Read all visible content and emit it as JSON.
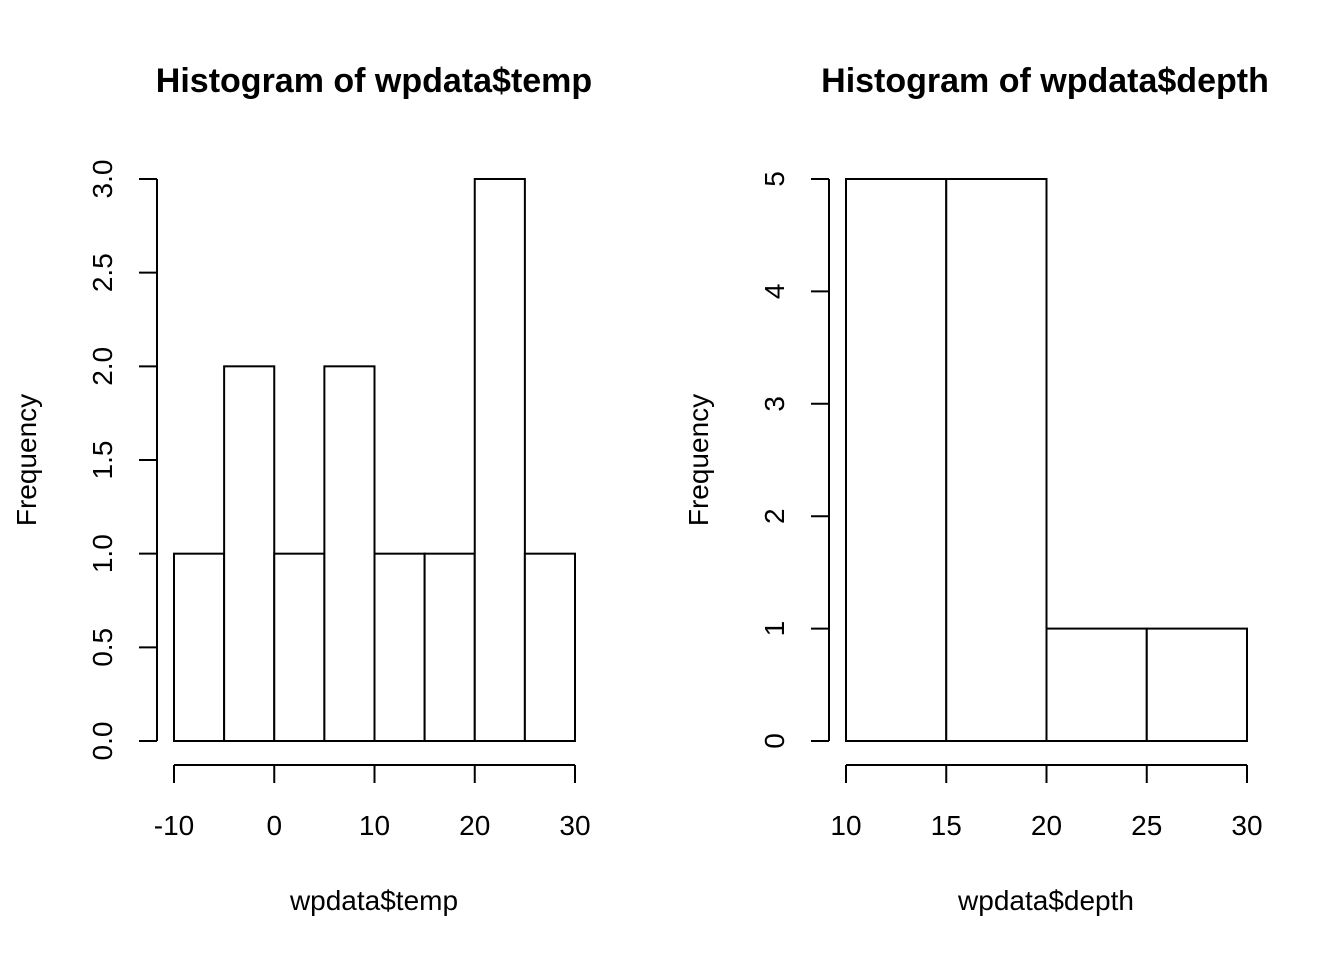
{
  "chart_data": [
    {
      "type": "bar",
      "histogram": true,
      "title": "Histogram of wpdata$temp",
      "xlabel": "wpdata$temp",
      "ylabel": "Frequency",
      "bins": [
        {
          "x0": -10,
          "x1": -5,
          "count": 1
        },
        {
          "x0": -5,
          "x1": 0,
          "count": 2
        },
        {
          "x0": 0,
          "x1": 5,
          "count": 1
        },
        {
          "x0": 5,
          "x1": 10,
          "count": 2
        },
        {
          "x0": 10,
          "x1": 15,
          "count": 1
        },
        {
          "x0": 15,
          "x1": 20,
          "count": 1
        },
        {
          "x0": 20,
          "x1": 25,
          "count": 3
        },
        {
          "x0": 25,
          "x1": 30,
          "count": 1
        }
      ],
      "xlim": [
        -10,
        30
      ],
      "ylim": [
        0,
        3
      ],
      "xticks": [
        -10,
        0,
        10,
        20,
        30
      ],
      "xtick_labels": [
        "-10",
        "0",
        "10",
        "20",
        "30"
      ],
      "yticks": [
        0,
        0.5,
        1,
        1.5,
        2,
        2.5,
        3
      ],
      "ytick_labels": [
        "0.0",
        "0.5",
        "1.0",
        "1.5",
        "2.0",
        "2.5",
        "3.0"
      ],
      "grid": false,
      "bar_fill": "#ffffff",
      "bar_stroke": "#000000"
    },
    {
      "type": "bar",
      "histogram": true,
      "title": "Histogram of wpdata$depth",
      "xlabel": "wpdata$depth",
      "ylabel": "Frequency",
      "bins": [
        {
          "x0": 10,
          "x1": 15,
          "count": 5
        },
        {
          "x0": 15,
          "x1": 20,
          "count": 5
        },
        {
          "x0": 20,
          "x1": 25,
          "count": 1
        },
        {
          "x0": 25,
          "x1": 30,
          "count": 1
        }
      ],
      "xlim": [
        10,
        30
      ],
      "ylim": [
        0,
        5
      ],
      "xticks": [
        10,
        15,
        20,
        25,
        30
      ],
      "xtick_labels": [
        "10",
        "15",
        "20",
        "25",
        "30"
      ],
      "yticks": [
        0,
        1,
        2,
        3,
        4,
        5
      ],
      "ytick_labels": [
        "0",
        "1",
        "2",
        "3",
        "4",
        "5"
      ],
      "grid": false,
      "bar_fill": "#ffffff",
      "bar_stroke": "#000000"
    }
  ]
}
